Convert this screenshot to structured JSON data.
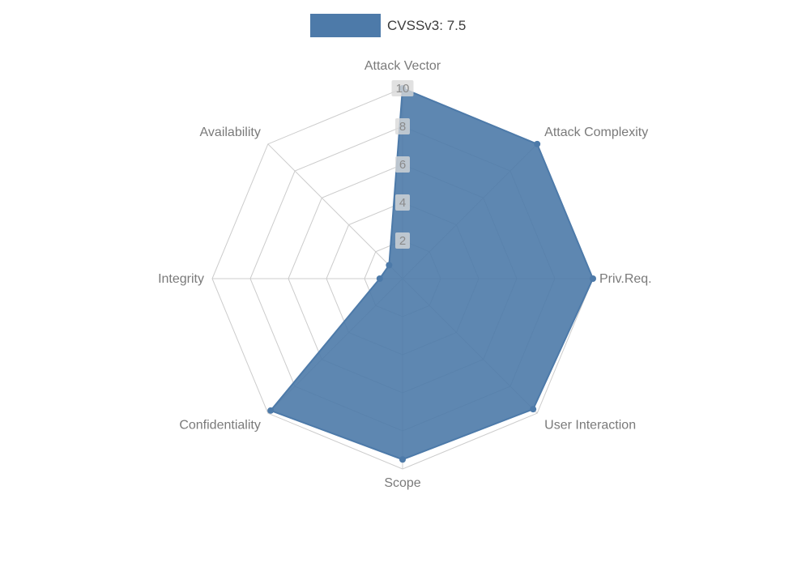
{
  "chart_data": {
    "type": "radar",
    "title": "",
    "legend_position": "top",
    "categories": [
      "Attack Vector",
      "Attack Complexity",
      "Priv.Req.",
      "User Interaction",
      "Scope",
      "Confidentiality",
      "Integrity",
      "Availability"
    ],
    "series": [
      {
        "name": "CVSSv3: 7.5",
        "color": "#4d7aa9",
        "values": [
          10,
          10,
          10,
          9.7,
          9.5,
          9.8,
          1.2,
          1
        ]
      }
    ],
    "rlim": [
      0,
      10
    ],
    "ticks": [
      2,
      4,
      6,
      8,
      10
    ],
    "grid": true
  },
  "colors": {
    "background": "#ffffff",
    "grid_line": "#cccccc",
    "axis_label": "#7a7a7a",
    "tick_text": "#8a8a8a",
    "tick_box_bg": "#d9d9d9",
    "legend_text": "#3c3c3c"
  }
}
